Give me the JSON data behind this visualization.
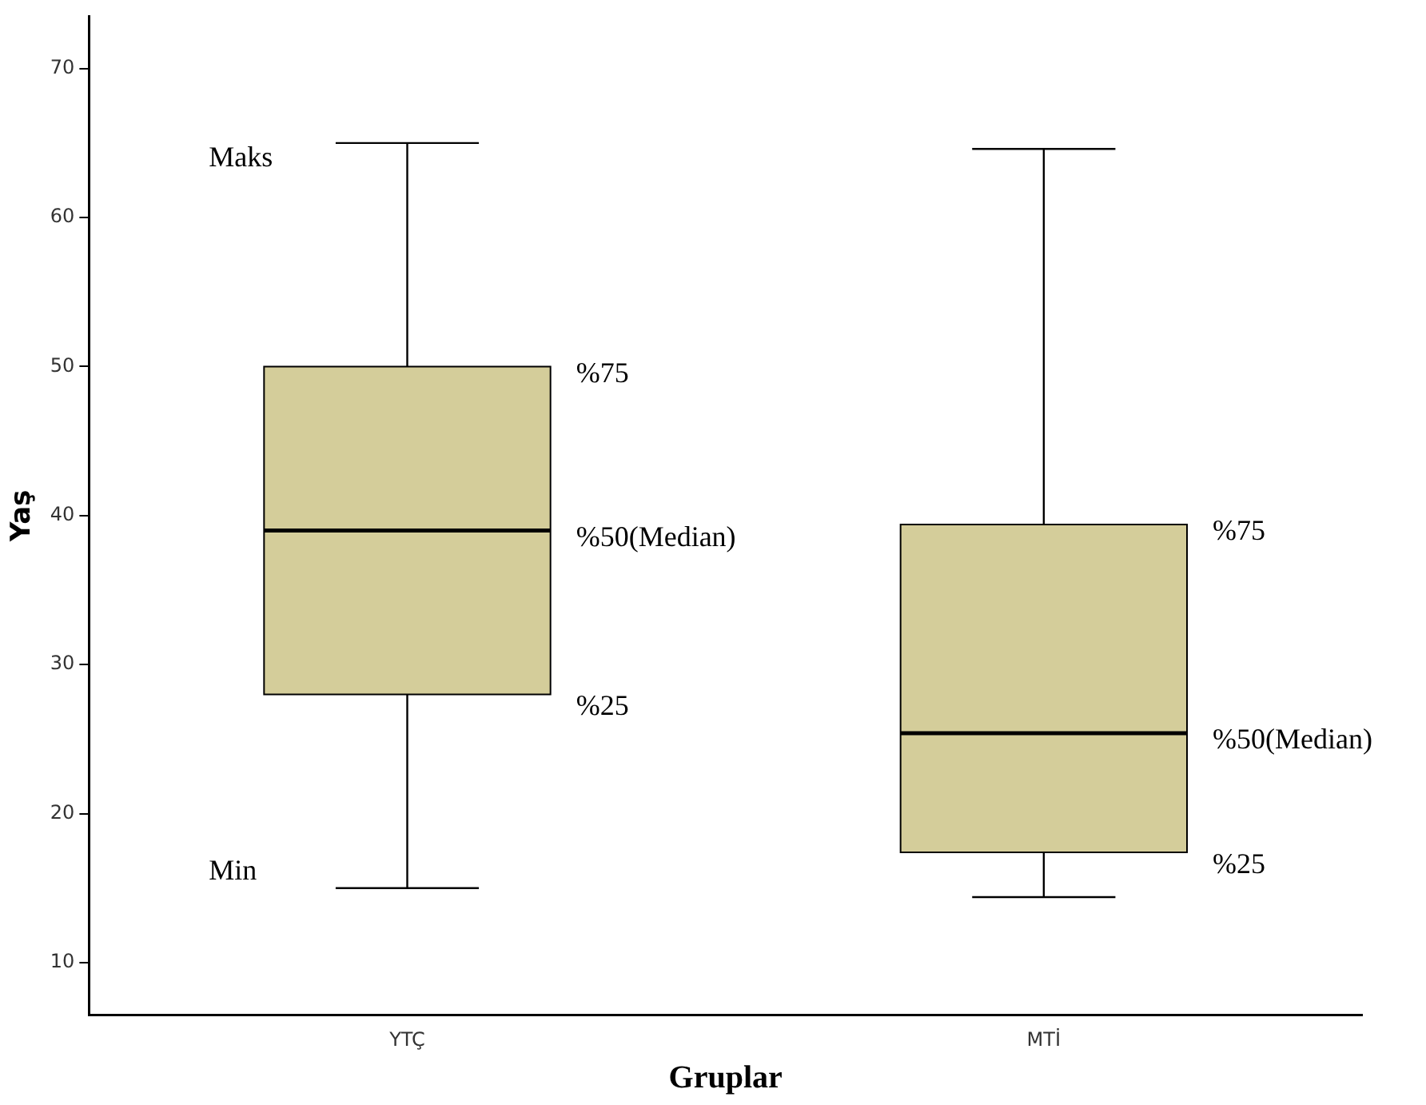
{
  "chart_data": {
    "type": "box",
    "xlabel": "Gruplar",
    "ylabel": "Yaş",
    "categories": [
      "YTÇ",
      "MTİ"
    ],
    "color": "#d4cd9a",
    "boxes": [
      {
        "low": 15,
        "q1": 28,
        "median": 39,
        "q3": 50,
        "high": 65
      },
      {
        "low": 14.4,
        "q1": 17.4,
        "median": 25.4,
        "q3": 39.4,
        "high": 64.6
      }
    ],
    "ylim": [
      6.5,
      73.5
    ],
    "yticks": [
      10,
      20,
      30,
      40,
      50,
      60,
      70
    ],
    "grid": false,
    "legend": false,
    "annotations": [
      "Maks",
      "%75",
      "%50(Median)",
      "%25",
      "Min",
      "%75",
      "%50(Median)",
      "%25"
    ]
  }
}
